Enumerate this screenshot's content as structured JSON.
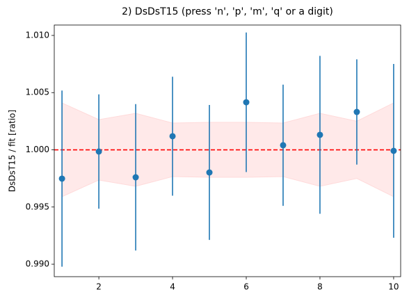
{
  "chart_data": {
    "type": "errorbar",
    "title": "2) DsDsT15   (press 'n', 'p', 'm', 'q' or a digit)",
    "ylabel": "DsDsT15 / fit   [ratio]",
    "x": [
      1,
      2,
      3,
      4,
      5,
      6,
      7,
      8,
      9,
      10
    ],
    "values": [
      0.99748,
      0.99985,
      0.9976,
      1.00119,
      0.99802,
      1.00416,
      1.0004,
      1.00131,
      1.00331,
      0.99991
    ],
    "errors": [
      0.0077,
      0.005,
      0.0064,
      0.0052,
      0.0059,
      0.0061,
      0.0053,
      0.0069,
      0.0046,
      0.0076
    ],
    "color": "#1f77b4",
    "band_upper": [
      1.0041,
      1.00264,
      1.00319,
      1.00234,
      1.0024,
      1.0024,
      1.00234,
      1.00319,
      1.0025,
      1.0041
    ],
    "band_lower": [
      0.9959,
      0.99736,
      0.99681,
      0.99766,
      0.9976,
      0.9976,
      0.99766,
      0.99681,
      0.9975,
      0.9959
    ],
    "band_color": "#ffdada",
    "hline": 1.0,
    "hline_color": "#ff0000",
    "xlim": [
      0.79,
      10.19
    ],
    "ylim": [
      0.98891,
      1.01091
    ],
    "xticks": [
      2,
      4,
      6,
      8,
      10
    ],
    "yticks": [
      {
        "value": 0.99,
        "label": "0.990"
      },
      {
        "value": 0.995,
        "label": "0.995"
      },
      {
        "value": 1.0,
        "label": "1.000"
      },
      {
        "value": 1.005,
        "label": "1.005"
      },
      {
        "value": 1.01,
        "label": "1.010"
      }
    ]
  }
}
